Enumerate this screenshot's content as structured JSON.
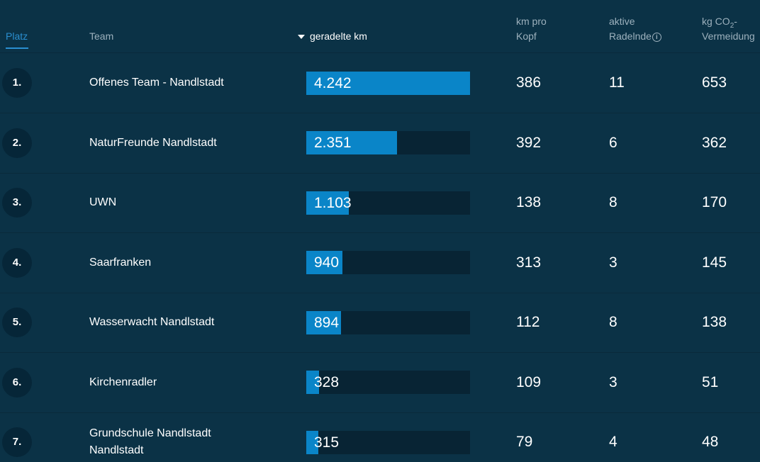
{
  "header": {
    "platz": "Platz",
    "team": "Team",
    "km": "geradelte km",
    "km_pro_kopf_1": "km pro",
    "km_pro_kopf_2": "Kopf",
    "aktive_1": "aktive",
    "aktive_2": "Radelnde",
    "info_glyph": "i",
    "co2_1_a": "kg CO",
    "co2_1_sub": "2",
    "co2_1_b": "-",
    "co2_2": "Vermeidung"
  },
  "bar_max_km": 4242,
  "rows": [
    {
      "rank": "1.",
      "team": [
        "Offenes Team - Nandlstadt"
      ],
      "km": "4.242",
      "km_value": 4242,
      "kopf": "386",
      "aktive": "11",
      "co2": "653"
    },
    {
      "rank": "2.",
      "team": [
        "NaturFreunde Nandlstadt"
      ],
      "km": "2.351",
      "km_value": 2351,
      "kopf": "392",
      "aktive": "6",
      "co2": "362"
    },
    {
      "rank": "3.",
      "team": [
        "UWN"
      ],
      "km": "1.103",
      "km_value": 1103,
      "kopf": "138",
      "aktive": "8",
      "co2": "170"
    },
    {
      "rank": "4.",
      "team": [
        "Saarfranken"
      ],
      "km": "940",
      "km_value": 940,
      "kopf": "313",
      "aktive": "3",
      "co2": "145"
    },
    {
      "rank": "5.",
      "team": [
        "Wasserwacht Nandlstadt"
      ],
      "km": "894",
      "km_value": 894,
      "kopf": "112",
      "aktive": "8",
      "co2": "138"
    },
    {
      "rank": "6.",
      "team": [
        "Kirchenradler"
      ],
      "km": "328",
      "km_value": 328,
      "kopf": "109",
      "aktive": "3",
      "co2": "51"
    },
    {
      "rank": "7.",
      "team": [
        "Grundschule Nandlstadt",
        "Nandlstadt"
      ],
      "km": "315",
      "km_value": 315,
      "kopf": "79",
      "aktive": "4",
      "co2": "48"
    }
  ]
}
